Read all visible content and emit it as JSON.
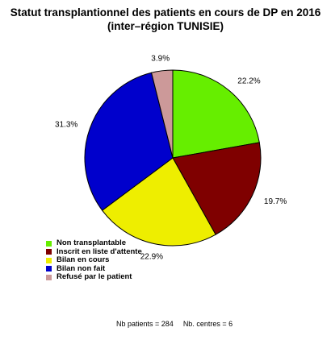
{
  "title_lines": [
    "Statut transplantionnel des patients en cours de DP en 2016",
    "(inter–région TUNISIE)"
  ],
  "chart_data": {
    "type": "pie",
    "title": "Statut transplantionnel des patients en cours de DP en 2016 (inter–région TUNISIE)",
    "start_angle_deg": 0,
    "direction": "clockwise",
    "slices": [
      {
        "label": "Non transplantable",
        "value": 22.2,
        "display": "22.2%",
        "color": "#66EE00"
      },
      {
        "label": "Inscrit en liste d'attente",
        "value": 19.7,
        "display": "19.7%",
        "color": "#7F0000"
      },
      {
        "label": "Bilan en cours",
        "value": 22.9,
        "display": "22.9%",
        "color": "#EEEE00"
      },
      {
        "label": "Bilan non fait",
        "value": 31.3,
        "display": "31.3%",
        "color": "#0000CC"
      },
      {
        "label": "Refusé par le patient",
        "value": 3.9,
        "display": "3.9%",
        "color": "#CC9999"
      }
    ],
    "legend_position": "bottom-left"
  },
  "footer": {
    "patients": "Nb patients =  284",
    "centres": "Nb. centres =  6"
  }
}
